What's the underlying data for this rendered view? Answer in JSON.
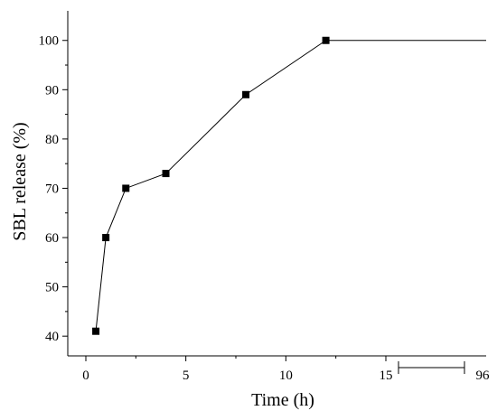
{
  "chart_data": {
    "type": "line",
    "xlabel": "Time (h)",
    "ylabel": "SBL release (%)",
    "xlim": [
      -1,
      20.5
    ],
    "ylim": [
      36,
      106
    ],
    "x_axis_break": {
      "after": 15,
      "resume_label": "96"
    },
    "x_ticks": [
      0,
      5,
      10,
      15
    ],
    "y_ticks": [
      40,
      50,
      60,
      70,
      80,
      90,
      100
    ],
    "grid": false,
    "series": [
      {
        "marker": "square",
        "color": "#000000",
        "points": [
          {
            "x": 0.5,
            "y": 41
          },
          {
            "x": 1,
            "y": 60
          },
          {
            "x": 2,
            "y": 70
          },
          {
            "x": 4,
            "y": 73
          },
          {
            "x": 8,
            "y": 89
          },
          {
            "x": 12,
            "y": 100
          }
        ],
        "plateau_to": 96
      }
    ]
  }
}
